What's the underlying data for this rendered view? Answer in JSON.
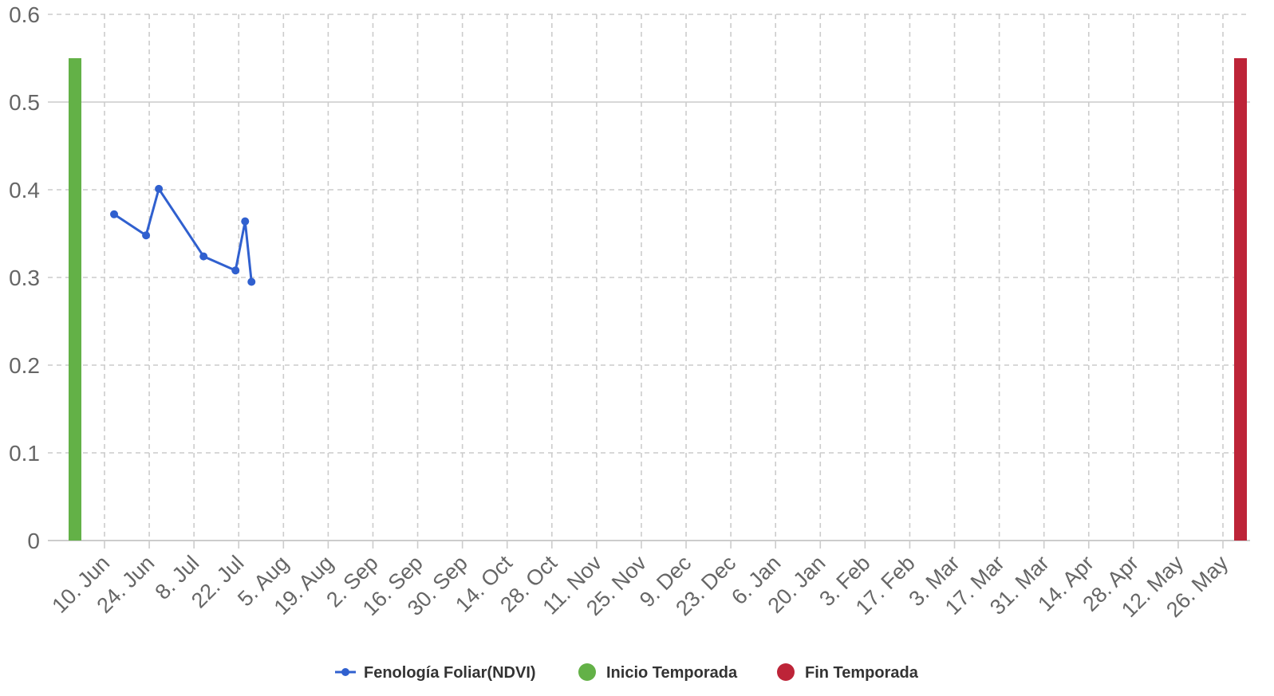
{
  "chart_data": {
    "type": "line",
    "ylim": [
      0,
      0.6
    ],
    "y_ticks": [
      "0",
      "0.1",
      "0.2",
      "0.3",
      "0.4",
      "0.5",
      "0.6"
    ],
    "x_tick_labels": [
      "10. Jun",
      "24. Jun",
      "8. Jul",
      "22. Jul",
      "5. Aug",
      "19. Aug",
      "2. Sep",
      "16. Sep",
      "30. Sep",
      "14. Oct",
      "28. Oct",
      "11. Nov",
      "25. Nov",
      "9. Dec",
      "23. Dec",
      "6. Jan",
      "20. Jan",
      "3. Feb",
      "17. Feb",
      "3. Mar",
      "17. Mar",
      "31. Mar",
      "14. Apr",
      "28. Apr",
      "12. May",
      "26. May"
    ],
    "tick_interval_days": 14,
    "grid": true,
    "series": [
      {
        "name": "Fenología Foliar(NDVI)",
        "type": "line",
        "color": "#3060cf",
        "points": [
          {
            "date": "13. Jun",
            "value": 0.372
          },
          {
            "date": "23. Jun",
            "value": 0.348
          },
          {
            "date": "27. Jun",
            "value": 0.401
          },
          {
            "date": "11. Jul",
            "value": 0.324
          },
          {
            "date": "21. Jul",
            "value": 0.308
          },
          {
            "date": "24. Jul",
            "value": 0.364
          },
          {
            "date": "26. Jul",
            "value": 0.295
          }
        ]
      },
      {
        "name": "Inicio Temporada",
        "type": "column",
        "color": "#63b147",
        "points": [
          {
            "date": "1. Jun",
            "value": 0.55
          }
        ]
      },
      {
        "name": "Fin Temporada",
        "type": "column",
        "color": "#bd2438",
        "points": [
          {
            "date": "31. May",
            "value": 0.55
          }
        ]
      }
    ],
    "legend_position": "bottom-center"
  }
}
